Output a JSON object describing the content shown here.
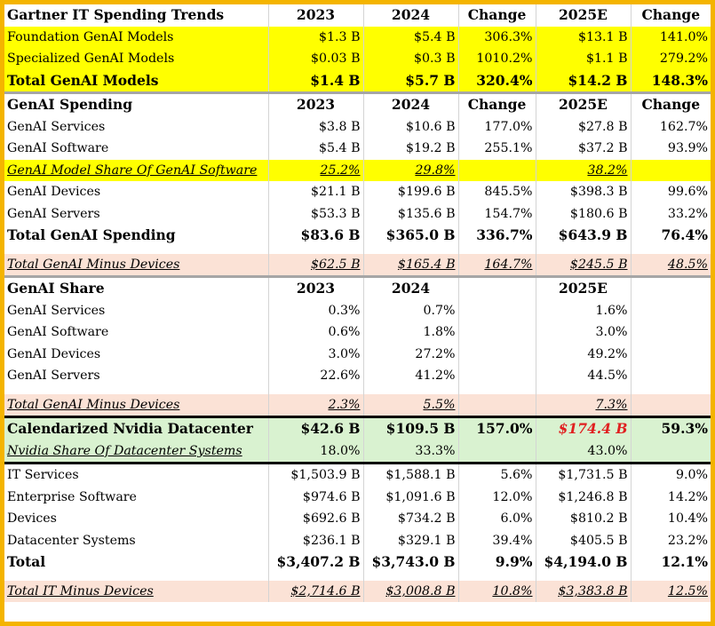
{
  "section1": {
    "header": [
      "Gartner IT Spending Trends",
      "2023",
      "2024",
      "Change",
      "2025E",
      "Change"
    ],
    "rows": [
      [
        "Foundation GenAI Models",
        "$1.3 B",
        "$5.4 B",
        "306.3%",
        "$13.1 B",
        "141.0%"
      ],
      [
        "Specialized GenAI Models",
        "$0.03 B",
        "$0.3 B",
        "1010.2%",
        "$1.1 B",
        "279.2%"
      ]
    ],
    "total": [
      "Total GenAI Models",
      "$1.4 B",
      "$5.7 B",
      "320.4%",
      "$14.2 B",
      "148.3%"
    ]
  },
  "section2": {
    "header": [
      "GenAI Spending",
      "2023",
      "2024",
      "Change",
      "2025E",
      "Change"
    ],
    "rows_a": [
      [
        "GenAI Services",
        "$3.8 B",
        "$10.6 B",
        "177.0%",
        "$27.8 B",
        "162.7%"
      ],
      [
        "GenAI Software",
        "$5.4 B",
        "$19.2 B",
        "255.1%",
        "$37.2 B",
        "93.9%"
      ]
    ],
    "model_share": [
      "GenAI Model Share Of GenAI Software",
      "25.2%",
      "29.8%",
      "",
      "38.2%",
      ""
    ],
    "rows_b": [
      [
        "GenAI Devices",
        "$21.1 B",
        "$199.6 B",
        "845.5%",
        "$398.3 B",
        "99.6%"
      ],
      [
        "GenAI Servers",
        "$53.3 B",
        "$135.6 B",
        "154.7%",
        "$180.6 B",
        "33.2%"
      ]
    ],
    "total": [
      "Total GenAI Spending",
      "$83.6 B",
      "$365.0 B",
      "336.7%",
      "$643.9 B",
      "76.4%"
    ],
    "minus_devices": [
      "Total GenAI Minus Devices",
      "$62.5 B",
      "$165.4 B",
      "164.7%",
      "$245.5 B",
      "48.5%"
    ]
  },
  "section3": {
    "header": [
      "GenAI Share",
      "2023",
      "2024",
      "",
      "2025E",
      ""
    ],
    "rows": [
      [
        "GenAI Services",
        "0.3%",
        "0.7%",
        "",
        "1.6%",
        ""
      ],
      [
        "GenAI Software",
        "0.6%",
        "1.8%",
        "",
        "3.0%",
        ""
      ],
      [
        "GenAI Devices",
        "3.0%",
        "27.2%",
        "",
        "49.2%",
        ""
      ],
      [
        "GenAI Servers",
        "22.6%",
        "41.2%",
        "",
        "44.5%",
        ""
      ]
    ],
    "minus_devices": [
      "Total GenAI Minus Devices",
      "2.3%",
      "5.5%",
      "",
      "7.3%",
      ""
    ]
  },
  "section4": {
    "datacenter": [
      "Calendarized Nvidia Datacenter",
      "$42.6 B",
      "$109.5 B",
      "157.0%",
      "$174.4 B",
      "59.3%"
    ],
    "share": [
      "Nvidia Share Of Datacenter Systems",
      "18.0%",
      "33.3%",
      "",
      "43.0%",
      ""
    ]
  },
  "section5": {
    "rows": [
      [
        "IT Services",
        "$1,503.9 B",
        "$1,588.1 B",
        "5.6%",
        "$1,731.5 B",
        "9.0%"
      ],
      [
        "Enterprise Software",
        "$974.6 B",
        "$1,091.6 B",
        "12.0%",
        "$1,246.8 B",
        "14.2%"
      ],
      [
        "Devices",
        "$692.6 B",
        "$734.2 B",
        "6.0%",
        "$810.2 B",
        "10.4%"
      ],
      [
        "Datacenter Systems",
        "$236.1 B",
        "$329.1 B",
        "39.4%",
        "$405.5 B",
        "23.2%"
      ]
    ],
    "total": [
      "Total",
      "$3,407.2 B",
      "$3,743.0 B",
      "9.9%",
      "$4,194.0 B",
      "12.1%"
    ],
    "minus_devices": [
      "Total IT Minus Devices",
      "$2,714.6 B",
      "$3,008.8 B",
      "10.8%",
      "$3,383.8 B",
      "12.5%"
    ]
  },
  "colors": {
    "frame": "#f4b400",
    "highlight_yellow": "#ffff00",
    "highlight_pink": "#fbe2d6",
    "highlight_green": "#d9f2d0",
    "estimate_red": "#e02020"
  }
}
